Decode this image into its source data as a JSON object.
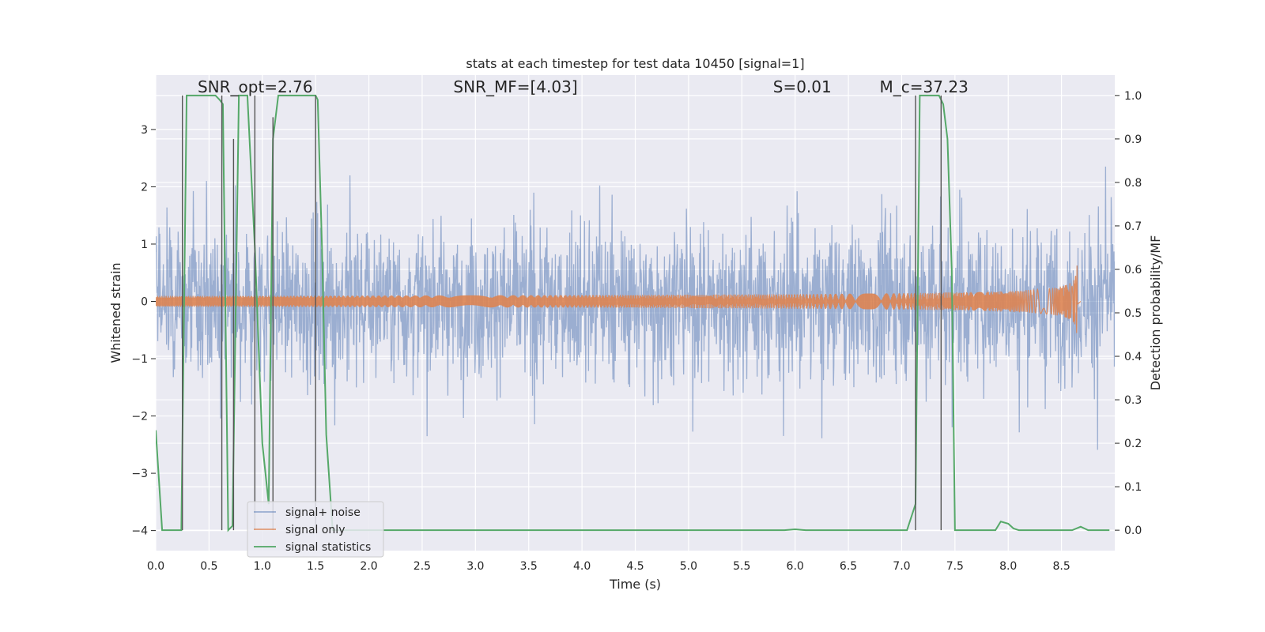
{
  "chart_data": {
    "type": "line",
    "title": "stats at each timestep for test data 10450 [signal=1]",
    "xlabel": "Time (s)",
    "ylabel": "Whitened strain",
    "ylabel_right": "Detection probability/MF",
    "xlim": [
      0.0,
      9.0
    ],
    "ylim": [
      -4.35,
      3.95
    ],
    "ylim_right": [
      -0.047,
      1.047
    ],
    "x_ticks": [
      "0.0",
      "0.5",
      "1.0",
      "1.5",
      "2.0",
      "2.5",
      "3.0",
      "3.5",
      "4.0",
      "4.5",
      "5.0",
      "5.5",
      "6.0",
      "6.5",
      "7.0",
      "7.5",
      "8.0",
      "8.5"
    ],
    "y_ticks_left": [
      "−4",
      "−3",
      "−2",
      "−1",
      "0",
      "1",
      "2",
      "3"
    ],
    "y_ticks_right": [
      "0.0",
      "0.1",
      "0.2",
      "0.3",
      "0.4",
      "0.5",
      "0.6",
      "0.7",
      "0.8",
      "0.9",
      "1.0"
    ],
    "grid": true,
    "legend_position": "lower-left",
    "annotations": [
      {
        "text": "SNR_opt=2.76",
        "x": 0.2,
        "y": 3.65
      },
      {
        "text": "SNR_MF=[4.03]",
        "x": 2.6,
        "y": 3.65
      },
      {
        "text": "S=0.01",
        "x": 5.6,
        "y": 3.65
      },
      {
        "text": "M_c=37.23",
        "x": 6.6,
        "y": 3.65
      }
    ],
    "series": [
      {
        "name": "signal+ noise",
        "axis": "left",
        "color": "#4c72b0",
        "style": "dense noise",
        "amplitude_envelope": {
          "typical_max": 2.0,
          "typical_min": -2.0,
          "peak_max": 3.6,
          "peak_min": -3.8
        },
        "x_range": [
          0.0,
          9.0
        ]
      },
      {
        "name": "signal only",
        "axis": "left",
        "color": "#dd8452",
        "style": "chirp",
        "x_range": [
          0.0,
          8.68
        ],
        "peak_time": 8.65,
        "peak_amplitude": 0.65
      },
      {
        "name": "signal statistics",
        "axis": "right",
        "color": "#55a868",
        "x": [
          0.0,
          0.06,
          0.12,
          0.2,
          0.24,
          0.29,
          0.56,
          0.6,
          0.63,
          0.68,
          0.72,
          0.78,
          0.86,
          0.93,
          1.0,
          1.06,
          1.1,
          1.15,
          1.2,
          1.24,
          1.3,
          1.5,
          1.52,
          1.56,
          1.6,
          1.66,
          2.0,
          3.0,
          4.0,
          5.0,
          5.5,
          5.9,
          6.0,
          6.1,
          6.5,
          6.9,
          7.05,
          7.13,
          7.17,
          7.2,
          7.35,
          7.39,
          7.43,
          7.47,
          7.5,
          7.55,
          7.8,
          7.88,
          7.93,
          8.0,
          8.05,
          8.1,
          8.5,
          8.6,
          8.68,
          8.75,
          8.86,
          8.95
        ],
        "y": [
          0.23,
          0.0,
          0.0,
          0.0,
          0.0,
          1.0,
          1.0,
          0.99,
          0.98,
          0.0,
          0.01,
          1.0,
          1.0,
          0.65,
          0.2,
          0.06,
          0.9,
          1.0,
          1.0,
          1.0,
          1.0,
          1.0,
          0.99,
          0.65,
          0.22,
          0.0,
          0.0,
          0.0,
          0.0,
          0.0,
          0.0,
          0.0,
          0.002,
          0.0,
          0.0,
          0.0,
          0.0,
          0.06,
          1.0,
          1.0,
          1.0,
          0.98,
          0.9,
          0.6,
          0.0,
          0.0,
          0.0,
          0.0,
          0.02,
          0.015,
          0.004,
          0.0,
          0.0,
          0.0,
          0.008,
          0.0,
          0.0,
          0.0
        ]
      },
      {
        "name": "",
        "axis": "right",
        "color": "#555555",
        "style": "vertical segments",
        "x": [
          0.25,
          0.62,
          0.73,
          0.93,
          1.1,
          1.5,
          7.13,
          7.37
        ],
        "y_top": [
          1.0,
          1.0,
          0.9,
          1.0,
          0.95,
          1.0,
          1.0,
          1.0
        ]
      }
    ]
  }
}
